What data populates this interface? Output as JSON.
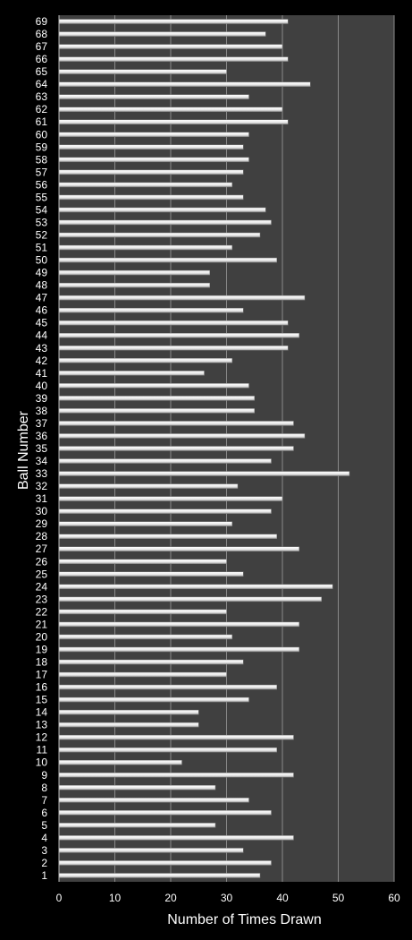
{
  "chart_data": {
    "type": "bar",
    "orientation": "horizontal",
    "xlabel": "Number of Times Drawn",
    "ylabel": "Ball Number",
    "xlim": [
      0,
      60
    ],
    "xticks": [
      0,
      10,
      20,
      30,
      40,
      50,
      60
    ],
    "grid": "vertical",
    "colors": {
      "background": "#000000",
      "plot_area": "#404040",
      "bar": "#e8e8e8",
      "gridline": "#8a8a8a",
      "text": "#ffffff"
    },
    "categories": [
      "1",
      "2",
      "3",
      "4",
      "5",
      "6",
      "7",
      "8",
      "9",
      "10",
      "11",
      "12",
      "13",
      "14",
      "15",
      "16",
      "17",
      "18",
      "19",
      "20",
      "21",
      "22",
      "23",
      "24",
      "25",
      "26",
      "27",
      "28",
      "29",
      "30",
      "31",
      "32",
      "33",
      "34",
      "35",
      "36",
      "37",
      "38",
      "39",
      "40",
      "41",
      "42",
      "43",
      "44",
      "45",
      "46",
      "47",
      "48",
      "49",
      "50",
      "51",
      "52",
      "53",
      "54",
      "55",
      "56",
      "57",
      "58",
      "59",
      "60",
      "61",
      "62",
      "63",
      "64",
      "65",
      "66",
      "67",
      "68",
      "69"
    ],
    "values": [
      36,
      38,
      33,
      42,
      28,
      38,
      34,
      28,
      42,
      22,
      39,
      42,
      25,
      25,
      34,
      39,
      30,
      33,
      43,
      31,
      43,
      30,
      47,
      49,
      33,
      30,
      43,
      39,
      31,
      38,
      40,
      32,
      52,
      38,
      42,
      44,
      42,
      35,
      35,
      34,
      26,
      31,
      41,
      43,
      41,
      33,
      44,
      27,
      27,
      39,
      31,
      36,
      38,
      37,
      33,
      31,
      33,
      34,
      33,
      34,
      41,
      40,
      34,
      45,
      30,
      41,
      40,
      37,
      41
    ]
  }
}
